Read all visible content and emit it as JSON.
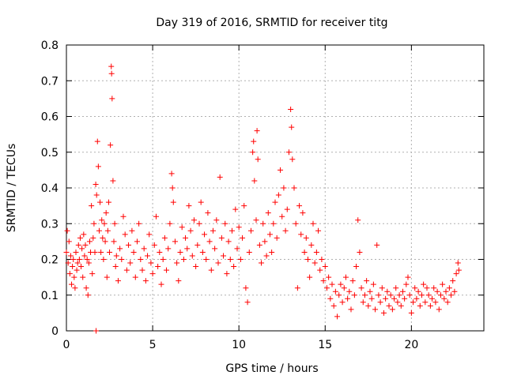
{
  "chart_data": {
    "type": "scatter",
    "title": "Day 319 of 2016, SRMTID for receiver titg",
    "xlabel": "GPS time / hours",
    "ylabel": "SRMTID / TECUs",
    "xlim": [
      0,
      24.2
    ],
    "ylim": [
      0,
      0.8
    ],
    "x_ticks": [
      0,
      5,
      10,
      15,
      20
    ],
    "x_tick_labels": [
      "0",
      "5",
      "10",
      "15",
      "20"
    ],
    "y_ticks": [
      0,
      0.1,
      0.2,
      0.3,
      0.4,
      0.5,
      0.6,
      0.7,
      0.8
    ],
    "y_tick_labels": [
      "0",
      "0.1",
      "0.2",
      "0.3",
      "0.4",
      "0.5",
      "0.6",
      "0.7",
      "0.8"
    ],
    "grid": true,
    "marker": "+",
    "marker_color": "#ff0000",
    "series": [
      {
        "name": "SRMTID",
        "points": [
          [
            0.0,
            0.22
          ],
          [
            0.05,
            0.28
          ],
          [
            0.1,
            0.19
          ],
          [
            0.15,
            0.25
          ],
          [
            0.2,
            0.16
          ],
          [
            0.25,
            0.21
          ],
          [
            0.3,
            0.13
          ],
          [
            0.35,
            0.18
          ],
          [
            0.4,
            0.2
          ],
          [
            0.45,
            0.15
          ],
          [
            0.5,
            0.12
          ],
          [
            0.55,
            0.22
          ],
          [
            0.6,
            0.17
          ],
          [
            0.65,
            0.19
          ],
          [
            0.7,
            0.24
          ],
          [
            0.75,
            0.2
          ],
          [
            0.8,
            0.26
          ],
          [
            0.85,
            0.18
          ],
          [
            0.9,
            0.23
          ],
          [
            0.95,
            0.15
          ],
          [
            1.0,
            0.27
          ],
          [
            1.05,
            0.21
          ],
          [
            1.1,
            0.24
          ],
          [
            1.15,
            0.12
          ],
          [
            1.2,
            0.2
          ],
          [
            1.25,
            0.1
          ],
          [
            1.3,
            0.19
          ],
          [
            1.35,
            0.25
          ],
          [
            1.4,
            0.22
          ],
          [
            1.45,
            0.35
          ],
          [
            1.5,
            0.16
          ],
          [
            1.55,
            0.26
          ],
          [
            1.6,
            0.3
          ],
          [
            1.65,
            0.22
          ],
          [
            1.7,
            0.41
          ],
          [
            1.72,
            0.0
          ],
          [
            1.75,
            0.38
          ],
          [
            1.8,
            0.53
          ],
          [
            1.85,
            0.46
          ],
          [
            1.9,
            0.28
          ],
          [
            1.95,
            0.36
          ],
          [
            2.0,
            0.22
          ],
          [
            2.05,
            0.31
          ],
          [
            2.1,
            0.26
          ],
          [
            2.15,
            0.2
          ],
          [
            2.2,
            0.3
          ],
          [
            2.25,
            0.25
          ],
          [
            2.3,
            0.33
          ],
          [
            2.35,
            0.15
          ],
          [
            2.4,
            0.28
          ],
          [
            2.45,
            0.36
          ],
          [
            2.5,
            0.22
          ],
          [
            2.55,
            0.52
          ],
          [
            2.6,
            0.74
          ],
          [
            2.62,
            0.72
          ],
          [
            2.65,
            0.65
          ],
          [
            2.7,
            0.42
          ],
          [
            2.75,
            0.25
          ],
          [
            2.8,
            0.3
          ],
          [
            2.85,
            0.18
          ],
          [
            2.9,
            0.21
          ],
          [
            3.0,
            0.14
          ],
          [
            3.1,
            0.23
          ],
          [
            3.2,
            0.2
          ],
          [
            3.3,
            0.32
          ],
          [
            3.4,
            0.27
          ],
          [
            3.5,
            0.17
          ],
          [
            3.6,
            0.24
          ],
          [
            3.7,
            0.19
          ],
          [
            3.8,
            0.28
          ],
          [
            3.9,
            0.22
          ],
          [
            4.0,
            0.15
          ],
          [
            4.1,
            0.25
          ],
          [
            4.2,
            0.3
          ],
          [
            4.3,
            0.2
          ],
          [
            4.4,
            0.17
          ],
          [
            4.5,
            0.23
          ],
          [
            4.6,
            0.14
          ],
          [
            4.7,
            0.21
          ],
          [
            4.8,
            0.27
          ],
          [
            4.9,
            0.19
          ],
          [
            5.0,
            0.16
          ],
          [
            5.1,
            0.24
          ],
          [
            5.2,
            0.32
          ],
          [
            5.3,
            0.18
          ],
          [
            5.4,
            0.22
          ],
          [
            5.5,
            0.13
          ],
          [
            5.6,
            0.2
          ],
          [
            5.7,
            0.26
          ],
          [
            5.8,
            0.17
          ],
          [
            5.9,
            0.23
          ],
          [
            6.0,
            0.3
          ],
          [
            6.1,
            0.44
          ],
          [
            6.15,
            0.4
          ],
          [
            6.2,
            0.36
          ],
          [
            6.3,
            0.25
          ],
          [
            6.4,
            0.19
          ],
          [
            6.5,
            0.14
          ],
          [
            6.6,
            0.22
          ],
          [
            6.7,
            0.29
          ],
          [
            6.8,
            0.2
          ],
          [
            6.9,
            0.26
          ],
          [
            7.0,
            0.23
          ],
          [
            7.1,
            0.35
          ],
          [
            7.2,
            0.28
          ],
          [
            7.3,
            0.21
          ],
          [
            7.4,
            0.31
          ],
          [
            7.5,
            0.18
          ],
          [
            7.6,
            0.24
          ],
          [
            7.7,
            0.3
          ],
          [
            7.8,
            0.36
          ],
          [
            7.9,
            0.22
          ],
          [
            8.0,
            0.27
          ],
          [
            8.1,
            0.2
          ],
          [
            8.2,
            0.33
          ],
          [
            8.3,
            0.25
          ],
          [
            8.4,
            0.17
          ],
          [
            8.5,
            0.28
          ],
          [
            8.6,
            0.23
          ],
          [
            8.7,
            0.31
          ],
          [
            8.8,
            0.19
          ],
          [
            8.9,
            0.43
          ],
          [
            9.0,
            0.26
          ],
          [
            9.1,
            0.21
          ],
          [
            9.2,
            0.3
          ],
          [
            9.3,
            0.16
          ],
          [
            9.4,
            0.25
          ],
          [
            9.5,
            0.2
          ],
          [
            9.6,
            0.28
          ],
          [
            9.7,
            0.18
          ],
          [
            9.8,
            0.34
          ],
          [
            9.9,
            0.23
          ],
          [
            10.0,
            0.29
          ],
          [
            10.1,
            0.2
          ],
          [
            10.2,
            0.26
          ],
          [
            10.3,
            0.35
          ],
          [
            10.4,
            0.12
          ],
          [
            10.5,
            0.08
          ],
          [
            10.6,
            0.22
          ],
          [
            10.7,
            0.28
          ],
          [
            10.8,
            0.5
          ],
          [
            10.85,
            0.53
          ],
          [
            10.9,
            0.42
          ],
          [
            11.0,
            0.31
          ],
          [
            11.05,
            0.56
          ],
          [
            11.1,
            0.48
          ],
          [
            11.2,
            0.24
          ],
          [
            11.3,
            0.19
          ],
          [
            11.4,
            0.3
          ],
          [
            11.5,
            0.25
          ],
          [
            11.6,
            0.21
          ],
          [
            11.7,
            0.33
          ],
          [
            11.8,
            0.27
          ],
          [
            11.9,
            0.22
          ],
          [
            12.0,
            0.3
          ],
          [
            12.1,
            0.36
          ],
          [
            12.2,
            0.26
          ],
          [
            12.3,
            0.38
          ],
          [
            12.4,
            0.45
          ],
          [
            12.5,
            0.32
          ],
          [
            12.6,
            0.4
          ],
          [
            12.7,
            0.28
          ],
          [
            12.8,
            0.34
          ],
          [
            12.9,
            0.5
          ],
          [
            13.0,
            0.62
          ],
          [
            13.05,
            0.57
          ],
          [
            13.1,
            0.48
          ],
          [
            13.2,
            0.4
          ],
          [
            13.3,
            0.3
          ],
          [
            13.4,
            0.12
          ],
          [
            13.5,
            0.35
          ],
          [
            13.6,
            0.27
          ],
          [
            13.7,
            0.33
          ],
          [
            13.8,
            0.22
          ],
          [
            13.9,
            0.26
          ],
          [
            14.0,
            0.2
          ],
          [
            14.1,
            0.15
          ],
          [
            14.2,
            0.24
          ],
          [
            14.3,
            0.3
          ],
          [
            14.4,
            0.19
          ],
          [
            14.5,
            0.22
          ],
          [
            14.6,
            0.28
          ],
          [
            14.7,
            0.17
          ],
          [
            14.8,
            0.2
          ],
          [
            14.9,
            0.14
          ],
          [
            15.0,
            0.18
          ],
          [
            15.1,
            0.12
          ],
          [
            15.2,
            0.15
          ],
          [
            15.3,
            0.09
          ],
          [
            15.4,
            0.13
          ],
          [
            15.5,
            0.07
          ],
          [
            15.6,
            0.11
          ],
          [
            15.7,
            0.04
          ],
          [
            15.8,
            0.1
          ],
          [
            15.9,
            0.13
          ],
          [
            16.0,
            0.08
          ],
          [
            16.1,
            0.12
          ],
          [
            16.2,
            0.15
          ],
          [
            16.3,
            0.09
          ],
          [
            16.4,
            0.11
          ],
          [
            16.5,
            0.06
          ],
          [
            16.6,
            0.14
          ],
          [
            16.7,
            0.1
          ],
          [
            16.8,
            0.18
          ],
          [
            16.9,
            0.31
          ],
          [
            17.0,
            0.22
          ],
          [
            17.1,
            0.12
          ],
          [
            17.2,
            0.08
          ],
          [
            17.3,
            0.1
          ],
          [
            17.4,
            0.14
          ],
          [
            17.5,
            0.07
          ],
          [
            17.6,
            0.11
          ],
          [
            17.7,
            0.09
          ],
          [
            17.8,
            0.13
          ],
          [
            17.9,
            0.06
          ],
          [
            18.0,
            0.24
          ],
          [
            18.1,
            0.1
          ],
          [
            18.2,
            0.08
          ],
          [
            18.3,
            0.12
          ],
          [
            18.4,
            0.05
          ],
          [
            18.5,
            0.09
          ],
          [
            18.6,
            0.11
          ],
          [
            18.7,
            0.07
          ],
          [
            18.8,
            0.1
          ],
          [
            18.9,
            0.06
          ],
          [
            19.0,
            0.09
          ],
          [
            19.1,
            0.12
          ],
          [
            19.2,
            0.08
          ],
          [
            19.3,
            0.1
          ],
          [
            19.4,
            0.07
          ],
          [
            19.5,
            0.11
          ],
          [
            19.6,
            0.09
          ],
          [
            19.7,
            0.13
          ],
          [
            19.8,
            0.15
          ],
          [
            19.9,
            0.1
          ],
          [
            20.0,
            0.05
          ],
          [
            20.1,
            0.08
          ],
          [
            20.2,
            0.12
          ],
          [
            20.3,
            0.09
          ],
          [
            20.4,
            0.11
          ],
          [
            20.5,
            0.07
          ],
          [
            20.6,
            0.1
          ],
          [
            20.7,
            0.13
          ],
          [
            20.8,
            0.08
          ],
          [
            20.9,
            0.12
          ],
          [
            21.0,
            0.1
          ],
          [
            21.1,
            0.07
          ],
          [
            21.2,
            0.09
          ],
          [
            21.3,
            0.12
          ],
          [
            21.4,
            0.08
          ],
          [
            21.5,
            0.11
          ],
          [
            21.6,
            0.06
          ],
          [
            21.7,
            0.1
          ],
          [
            21.8,
            0.13
          ],
          [
            21.9,
            0.09
          ],
          [
            22.0,
            0.11
          ],
          [
            22.1,
            0.08
          ],
          [
            22.2,
            0.12
          ],
          [
            22.3,
            0.1
          ],
          [
            22.4,
            0.14
          ],
          [
            22.5,
            0.11
          ],
          [
            22.6,
            0.16
          ],
          [
            22.7,
            0.19
          ],
          [
            22.75,
            0.17
          ]
        ]
      }
    ]
  }
}
